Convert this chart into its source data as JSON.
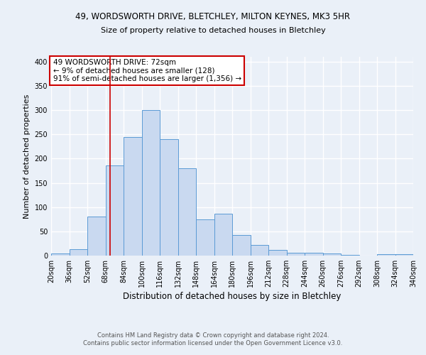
{
  "title1": "49, WORDSWORTH DRIVE, BLETCHLEY, MILTON KEYNES, MK3 5HR",
  "title2": "Size of property relative to detached houses in Bletchley",
  "xlabel": "Distribution of detached houses by size in Bletchley",
  "ylabel": "Number of detached properties",
  "footer1": "Contains HM Land Registry data © Crown copyright and database right 2024.",
  "footer2": "Contains public sector information licensed under the Open Government Licence v3.0.",
  "annotation_line1": "49 WORDSWORTH DRIVE: 72sqm",
  "annotation_line2": "← 9% of detached houses are smaller (128)",
  "annotation_line3": "91% of semi-detached houses are larger (1,356) →",
  "property_size": 72,
  "bin_edges": [
    20,
    36,
    52,
    68,
    84,
    100,
    116,
    132,
    148,
    164,
    180,
    196,
    212,
    228,
    244,
    260,
    276,
    292,
    308,
    324,
    340
  ],
  "bin_counts": [
    4,
    13,
    81,
    186,
    245,
    300,
    240,
    180,
    74,
    86,
    42,
    22,
    11,
    6,
    6,
    4,
    2,
    0,
    3,
    3
  ],
  "bar_facecolor": "#c9d9f0",
  "bar_edgecolor": "#5b9bd5",
  "vline_color": "#cc0000",
  "vline_x": 72,
  "bg_color": "#eaf0f8",
  "plot_bg_color": "#eaf0f8",
  "grid_color": "#ffffff",
  "annotation_box_edgecolor": "#cc0000",
  "annotation_box_facecolor": "#ffffff",
  "ylim": [
    0,
    410
  ],
  "xlim": [
    20,
    340
  ],
  "title1_fontsize": 8.5,
  "title2_fontsize": 8.0,
  "xlabel_fontsize": 8.5,
  "ylabel_fontsize": 8.0,
  "tick_fontsize": 7.0,
  "footer_fontsize": 6.0,
  "ann_fontsize": 7.5
}
